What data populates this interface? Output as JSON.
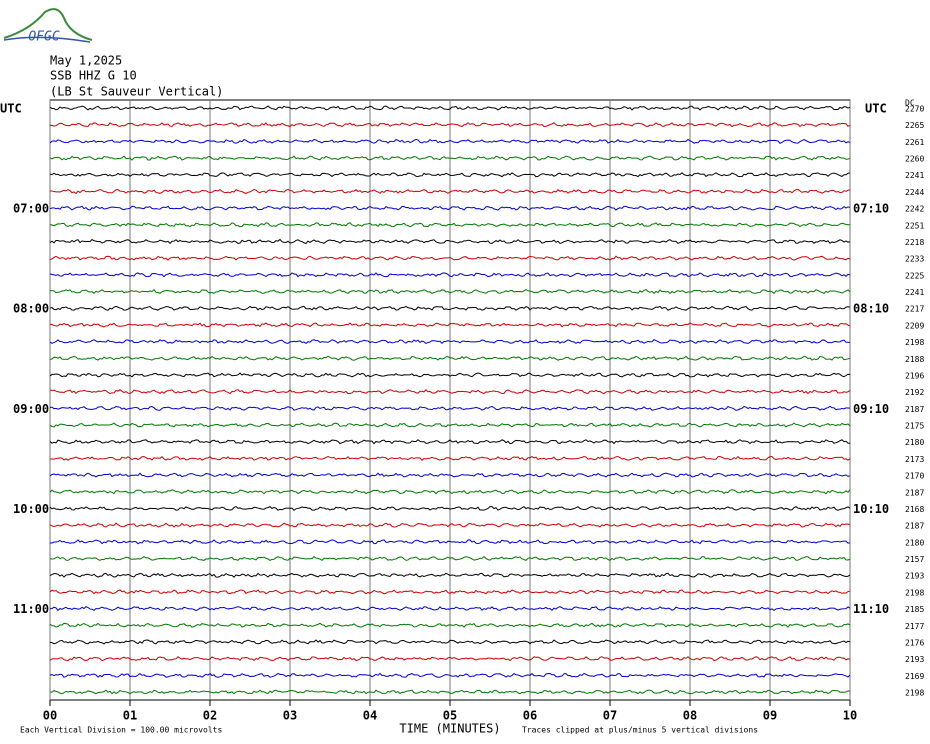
{
  "chart_data": {
    "type": "helicorder",
    "logo": "OFGC",
    "title": [
      "May 1,2025",
      "SSB HHZ G 10",
      "(LB  St Sauveur Vertical)"
    ],
    "xlabel": "TIME (MINUTES)",
    "note_left": "Each Vertical Division =  100.00 microvolts",
    "note_right": "Traces clipped at plus/minus 5 vertical divisions",
    "dc_header": "DC",
    "xlim": [
      0,
      10
    ],
    "xticks": [
      {
        "value": 0,
        "label": "00"
      },
      {
        "value": 1,
        "label": "01"
      },
      {
        "value": 2,
        "label": "02"
      },
      {
        "value": 3,
        "label": "03"
      },
      {
        "value": 4,
        "label": "04"
      },
      {
        "value": 5,
        "label": "05"
      },
      {
        "value": 6,
        "label": "06"
      },
      {
        "value": 7,
        "label": "07"
      },
      {
        "value": 8,
        "label": "08"
      },
      {
        "value": 9,
        "label": "09"
      },
      10
    ],
    "colors": [
      "#000000",
      "#cc0000",
      "#0000cc",
      "#007700"
    ],
    "row_labels": [
      "UTC",
      null,
      null,
      null,
      null,
      null,
      "07:00",
      null,
      null,
      null,
      null,
      null,
      "08:00",
      null,
      null,
      null,
      null,
      null,
      "09:00",
      null,
      null,
      null,
      null,
      null,
      "10:00",
      null,
      null,
      null,
      null,
      null,
      "11:00",
      null,
      null,
      null,
      null,
      null
    ],
    "row_labels_right": [
      "UTC",
      null,
      null,
      null,
      null,
      null,
      "07:10",
      null,
      null,
      null,
      null,
      null,
      "08:10",
      null,
      null,
      null,
      null,
      null,
      "09:10",
      null,
      null,
      null,
      null,
      null,
      "10:10",
      null,
      null,
      null,
      null,
      null,
      "11:10",
      null,
      null,
      null,
      null,
      null
    ],
    "dc_offsets": [
      2270,
      2265,
      2261,
      2260,
      2241,
      2244,
      2242,
      2251,
      2218,
      2233,
      2225,
      2241,
      2217,
      2209,
      2198,
      2188,
      2196,
      2192,
      2187,
      2175,
      2180,
      2173,
      2170,
      2187,
      2168,
      2187,
      2180,
      2157,
      2193,
      2198,
      2185,
      2177,
      2176,
      2193,
      2169,
      2198
    ]
  }
}
